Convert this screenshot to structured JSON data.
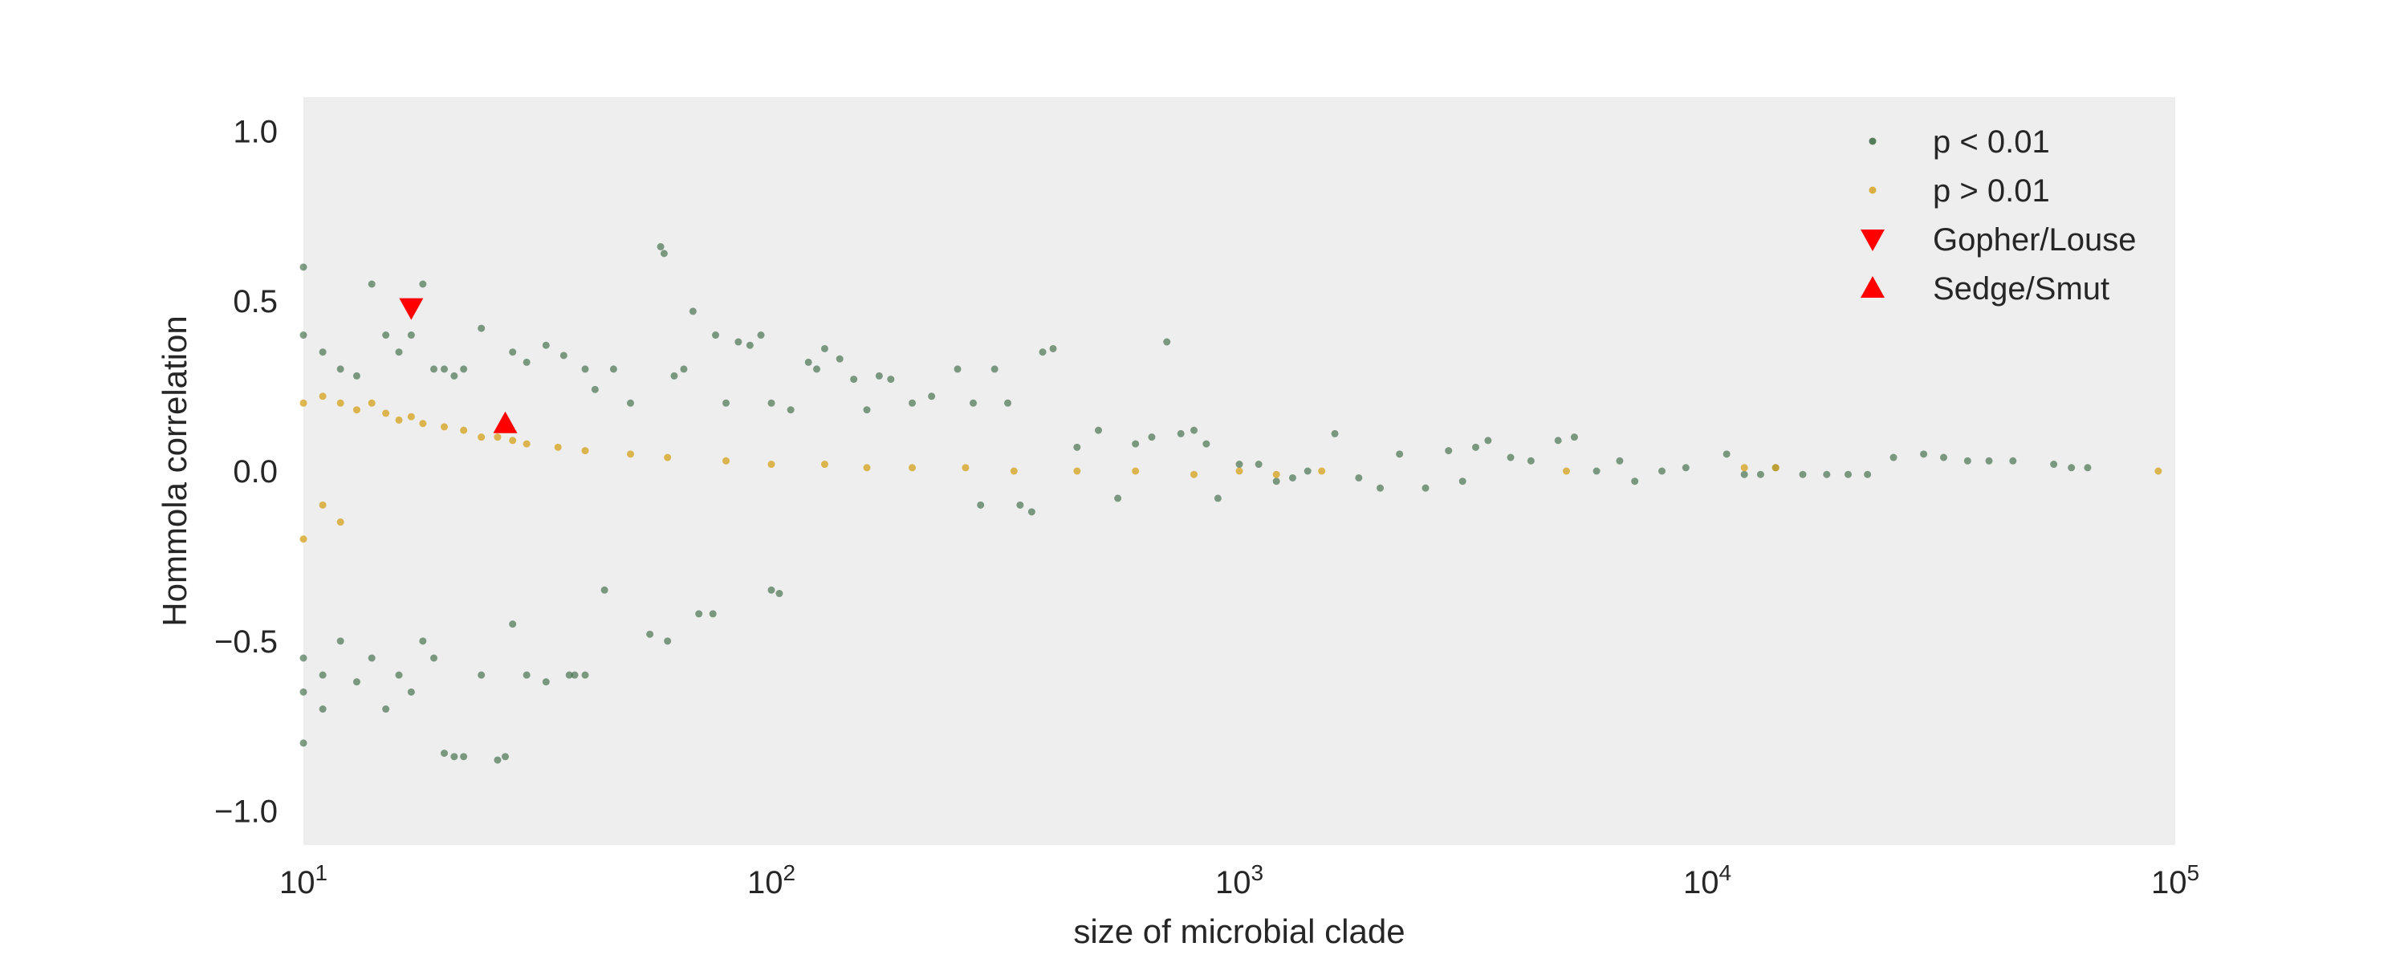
{
  "chart_data": {
    "type": "scatter",
    "title": "",
    "xlabel": "size of microbial clade",
    "ylabel": "Hommola correlation",
    "xscale": "log",
    "xlim": [
      10,
      100000
    ],
    "ylim": [
      -1.1,
      1.1
    ],
    "grid": false,
    "legend_position": "top-right",
    "background_color": "#eeeeee",
    "x_ticks": [
      {
        "value": 10,
        "base": "10",
        "exp": "1"
      },
      {
        "value": 100,
        "base": "10",
        "exp": "2"
      },
      {
        "value": 1000,
        "base": "10",
        "exp": "3"
      },
      {
        "value": 10000,
        "base": "10",
        "exp": "4"
      },
      {
        "value": 100000,
        "base": "10",
        "exp": "5"
      }
    ],
    "y_ticks": [
      {
        "value": 1.0,
        "label": "1.0"
      },
      {
        "value": 0.5,
        "label": "0.5"
      },
      {
        "value": 0.0,
        "label": "0.0"
      },
      {
        "value": -0.5,
        "label": "−0.5"
      },
      {
        "value": -1.0,
        "label": "−1.0"
      }
    ],
    "series": [
      {
        "name": "p < 0.01",
        "marker": "circle",
        "color": "#2d5f35",
        "description": "significant correlations (dense cloud, values sampled)",
        "points": [
          [
            10,
            0.6
          ],
          [
            10,
            0.4
          ],
          [
            10,
            -0.55
          ],
          [
            10,
            -0.65
          ],
          [
            10,
            -0.8
          ],
          [
            11,
            0.35
          ],
          [
            11,
            -0.6
          ],
          [
            11,
            -0.7
          ],
          [
            12,
            0.3
          ],
          [
            12,
            -0.5
          ],
          [
            13,
            0.28
          ],
          [
            13,
            -0.62
          ],
          [
            14,
            0.55
          ],
          [
            14,
            -0.55
          ],
          [
            15,
            0.4
          ],
          [
            15,
            -0.7
          ],
          [
            16,
            0.35
          ],
          [
            16,
            -0.6
          ],
          [
            17,
            0.4
          ],
          [
            17,
            -0.65
          ],
          [
            18,
            0.55
          ],
          [
            18,
            -0.5
          ],
          [
            19,
            0.3
          ],
          [
            19,
            -0.55
          ],
          [
            20,
            0.3
          ],
          [
            20,
            -0.83
          ],
          [
            21,
            0.28
          ],
          [
            21,
            -0.84
          ],
          [
            22,
            0.3
          ],
          [
            22,
            -0.84
          ],
          [
            24,
            0.42
          ],
          [
            24,
            -0.6
          ],
          [
            26,
            -0.85
          ],
          [
            27,
            -0.84
          ],
          [
            28,
            0.35
          ],
          [
            28,
            -0.45
          ],
          [
            30,
            0.32
          ],
          [
            30,
            -0.6
          ],
          [
            33,
            0.37
          ],
          [
            33,
            -0.62
          ],
          [
            36,
            0.34
          ],
          [
            37,
            -0.6
          ],
          [
            38,
            -0.6
          ],
          [
            40,
            0.3
          ],
          [
            40,
            -0.6
          ],
          [
            42,
            0.24
          ],
          [
            44,
            -0.35
          ],
          [
            46,
            0.3
          ],
          [
            50,
            0.2
          ],
          [
            55,
            -0.48
          ],
          [
            58,
            0.66
          ],
          [
            59,
            0.64
          ],
          [
            60,
            -0.5
          ],
          [
            62,
            0.28
          ],
          [
            65,
            0.3
          ],
          [
            68,
            0.47
          ],
          [
            70,
            -0.42
          ],
          [
            75,
            -0.42
          ],
          [
            76,
            0.4
          ],
          [
            80,
            0.2
          ],
          [
            85,
            0.38
          ],
          [
            90,
            0.37
          ],
          [
            95,
            0.4
          ],
          [
            100,
            0.2
          ],
          [
            100,
            -0.35
          ],
          [
            104,
            -0.36
          ],
          [
            110,
            0.18
          ],
          [
            120,
            0.32
          ],
          [
            125,
            0.3
          ],
          [
            130,
            0.36
          ],
          [
            140,
            0.33
          ],
          [
            150,
            0.27
          ],
          [
            160,
            0.18
          ],
          [
            170,
            0.28
          ],
          [
            180,
            0.27
          ],
          [
            200,
            0.2
          ],
          [
            220,
            0.22
          ],
          [
            250,
            0.3
          ],
          [
            270,
            0.2
          ],
          [
            280,
            -0.1
          ],
          [
            300,
            0.3
          ],
          [
            320,
            0.2
          ],
          [
            340,
            -0.1
          ],
          [
            360,
            -0.12
          ],
          [
            380,
            0.35
          ],
          [
            400,
            0.36
          ],
          [
            450,
            0.07
          ],
          [
            500,
            0.12
          ],
          [
            550,
            -0.08
          ],
          [
            600,
            0.08
          ],
          [
            650,
            0.1
          ],
          [
            700,
            0.38
          ],
          [
            750,
            0.11
          ],
          [
            800,
            0.12
          ],
          [
            850,
            0.08
          ],
          [
            900,
            -0.08
          ],
          [
            1000,
            0.02
          ],
          [
            1100,
            0.02
          ],
          [
            1200,
            -0.03
          ],
          [
            1300,
            -0.02
          ],
          [
            1400,
            0.0
          ],
          [
            1600,
            0.11
          ],
          [
            1800,
            -0.02
          ],
          [
            2000,
            -0.05
          ],
          [
            2200,
            0.05
          ],
          [
            2500,
            -0.05
          ],
          [
            2800,
            0.06
          ],
          [
            3000,
            -0.03
          ],
          [
            3200,
            0.07
          ],
          [
            3400,
            0.09
          ],
          [
            3800,
            0.04
          ],
          [
            4200,
            0.03
          ],
          [
            4800,
            0.09
          ],
          [
            5200,
            0.1
          ],
          [
            5800,
            0.0
          ],
          [
            6500,
            0.03
          ],
          [
            7000,
            -0.03
          ],
          [
            8000,
            0.0
          ],
          [
            9000,
            0.01
          ],
          [
            11000,
            0.05
          ],
          [
            12000,
            -0.01
          ],
          [
            13000,
            -0.01
          ],
          [
            14000,
            0.01
          ],
          [
            16000,
            -0.01
          ],
          [
            18000,
            -0.01
          ],
          [
            20000,
            -0.01
          ],
          [
            22000,
            -0.01
          ],
          [
            25000,
            0.04
          ],
          [
            29000,
            0.05
          ],
          [
            32000,
            0.04
          ],
          [
            36000,
            0.03
          ],
          [
            40000,
            0.03
          ],
          [
            45000,
            0.03
          ],
          [
            55000,
            0.02
          ],
          [
            60000,
            0.01
          ],
          [
            65000,
            0.01
          ]
        ]
      },
      {
        "name": "p > 0.01",
        "marker": "circle",
        "color": "#d4a017",
        "description": "non-significant correlations (dense near zero, values sampled)",
        "points": [
          [
            10,
            0.2
          ],
          [
            10,
            -0.2
          ],
          [
            11,
            0.22
          ],
          [
            11,
            -0.1
          ],
          [
            12,
            0.2
          ],
          [
            12,
            -0.15
          ],
          [
            13,
            0.18
          ],
          [
            14,
            0.2
          ],
          [
            15,
            0.17
          ],
          [
            16,
            0.15
          ],
          [
            17,
            0.16
          ],
          [
            18,
            0.14
          ],
          [
            20,
            0.13
          ],
          [
            22,
            0.12
          ],
          [
            24,
            0.1
          ],
          [
            26,
            0.1
          ],
          [
            28,
            0.09
          ],
          [
            30,
            0.08
          ],
          [
            35,
            0.07
          ],
          [
            40,
            0.06
          ],
          [
            50,
            0.05
          ],
          [
            60,
            0.04
          ],
          [
            80,
            0.03
          ],
          [
            100,
            0.02
          ],
          [
            130,
            0.02
          ],
          [
            160,
            0.01
          ],
          [
            200,
            0.01
          ],
          [
            260,
            0.01
          ],
          [
            330,
            0.0
          ],
          [
            450,
            0.0
          ],
          [
            600,
            0.0
          ],
          [
            800,
            -0.01
          ],
          [
            1000,
            0.0
          ],
          [
            1200,
            -0.01
          ],
          [
            1500,
            0.0
          ],
          [
            5000,
            0.0
          ],
          [
            12000,
            0.01
          ],
          [
            14000,
            0.01
          ],
          [
            92000,
            0.0
          ]
        ]
      },
      {
        "name": "Gopher/Louse",
        "marker": "triangle-down",
        "color": "#ff0000",
        "points": [
          [
            17,
            0.48
          ]
        ]
      },
      {
        "name": "Sedge/Smut",
        "marker": "triangle-up",
        "color": "#ff0000",
        "points": [
          [
            27,
            0.14
          ]
        ]
      }
    ]
  }
}
